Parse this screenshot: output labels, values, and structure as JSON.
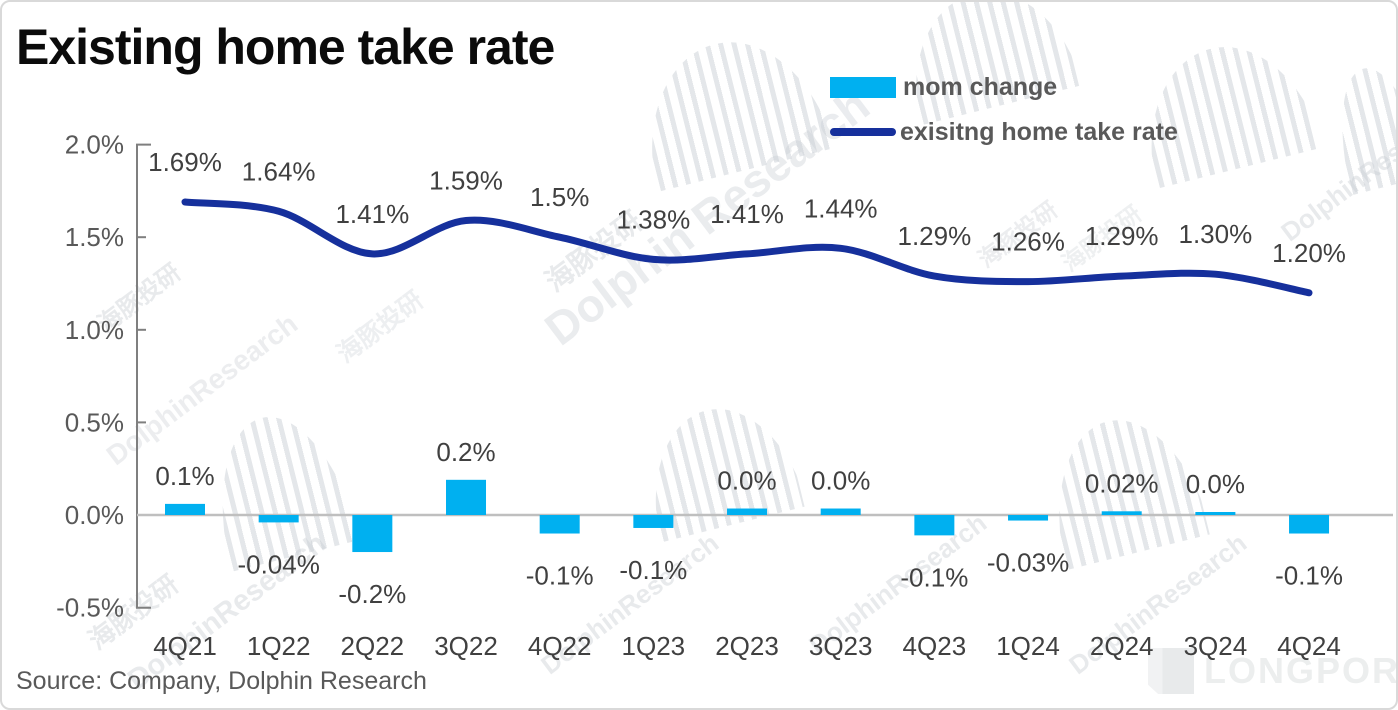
{
  "title": "Existing home take rate",
  "legend": {
    "items": [
      {
        "label": "mom change",
        "swatch": "bar"
      },
      {
        "label": "exisitng home take rate",
        "swatch": "line"
      }
    ]
  },
  "source": "Source: Company, Dolphin Research",
  "brand": "LONGPORT",
  "watermark": {
    "cn": "海豚投研",
    "en": "DolphinResearch",
    "en_spaced": "Dolphin Research"
  },
  "colors": {
    "bar": "#00B0F0",
    "line": "#16309C",
    "axis": "#7F7F7F",
    "zero_line": "#BFBFBF",
    "data_label": "#404040",
    "tick_label": "#595959",
    "legend_text": "#595959"
  },
  "chart_data": {
    "type": "combo-bar-line",
    "categories": [
      "4Q21",
      "1Q22",
      "2Q22",
      "3Q22",
      "4Q22",
      "1Q23",
      "2Q23",
      "3Q23",
      "4Q23",
      "1Q24",
      "2Q24",
      "3Q24",
      "4Q24"
    ],
    "series": [
      {
        "name": "mom change",
        "type": "bar",
        "labels": [
          "0.1%",
          "-0.04%",
          "-0.2%",
          "0.2%",
          "-0.1%",
          "-0.1%",
          "0.0%",
          "0.0%",
          "-0.1%",
          "-0.03%",
          "0.02%",
          "0.0%",
          "-0.1%"
        ],
        "values": [
          0.1,
          -0.04,
          -0.2,
          0.2,
          -0.1,
          -0.1,
          0.0,
          0.0,
          -0.1,
          -0.03,
          0.02,
          0.0,
          -0.1
        ],
        "plotted_values": [
          0.06,
          -0.04,
          -0.2,
          0.19,
          -0.1,
          -0.07,
          0.035,
          0.035,
          -0.11,
          -0.03,
          0.02,
          0.015,
          -0.1
        ]
      },
      {
        "name": "exisitng home take rate",
        "type": "line",
        "labels": [
          "1.69%",
          "1.64%",
          "1.41%",
          "1.59%",
          "1.5%",
          "1.38%",
          "1.41%",
          "1.44%",
          "1.29%",
          "1.26%",
          "1.29%",
          "1.30%",
          "1.20%"
        ],
        "values": [
          1.69,
          1.64,
          1.41,
          1.59,
          1.5,
          1.38,
          1.41,
          1.44,
          1.29,
          1.26,
          1.29,
          1.3,
          1.2
        ]
      }
    ],
    "ylim": [
      -0.5,
      2.0
    ],
    "yticks": [
      {
        "label": "2.0%",
        "value": 2.0
      },
      {
        "label": "1.5%",
        "value": 1.5
      },
      {
        "label": "1.0%",
        "value": 1.0
      },
      {
        "label": "0.5%",
        "value": 0.5
      },
      {
        "label": "0.0%",
        "value": 0.0
      },
      {
        "label": "-0.5%",
        "value": -0.5
      }
    ],
    "grid": false,
    "legend_position": "top-right"
  }
}
